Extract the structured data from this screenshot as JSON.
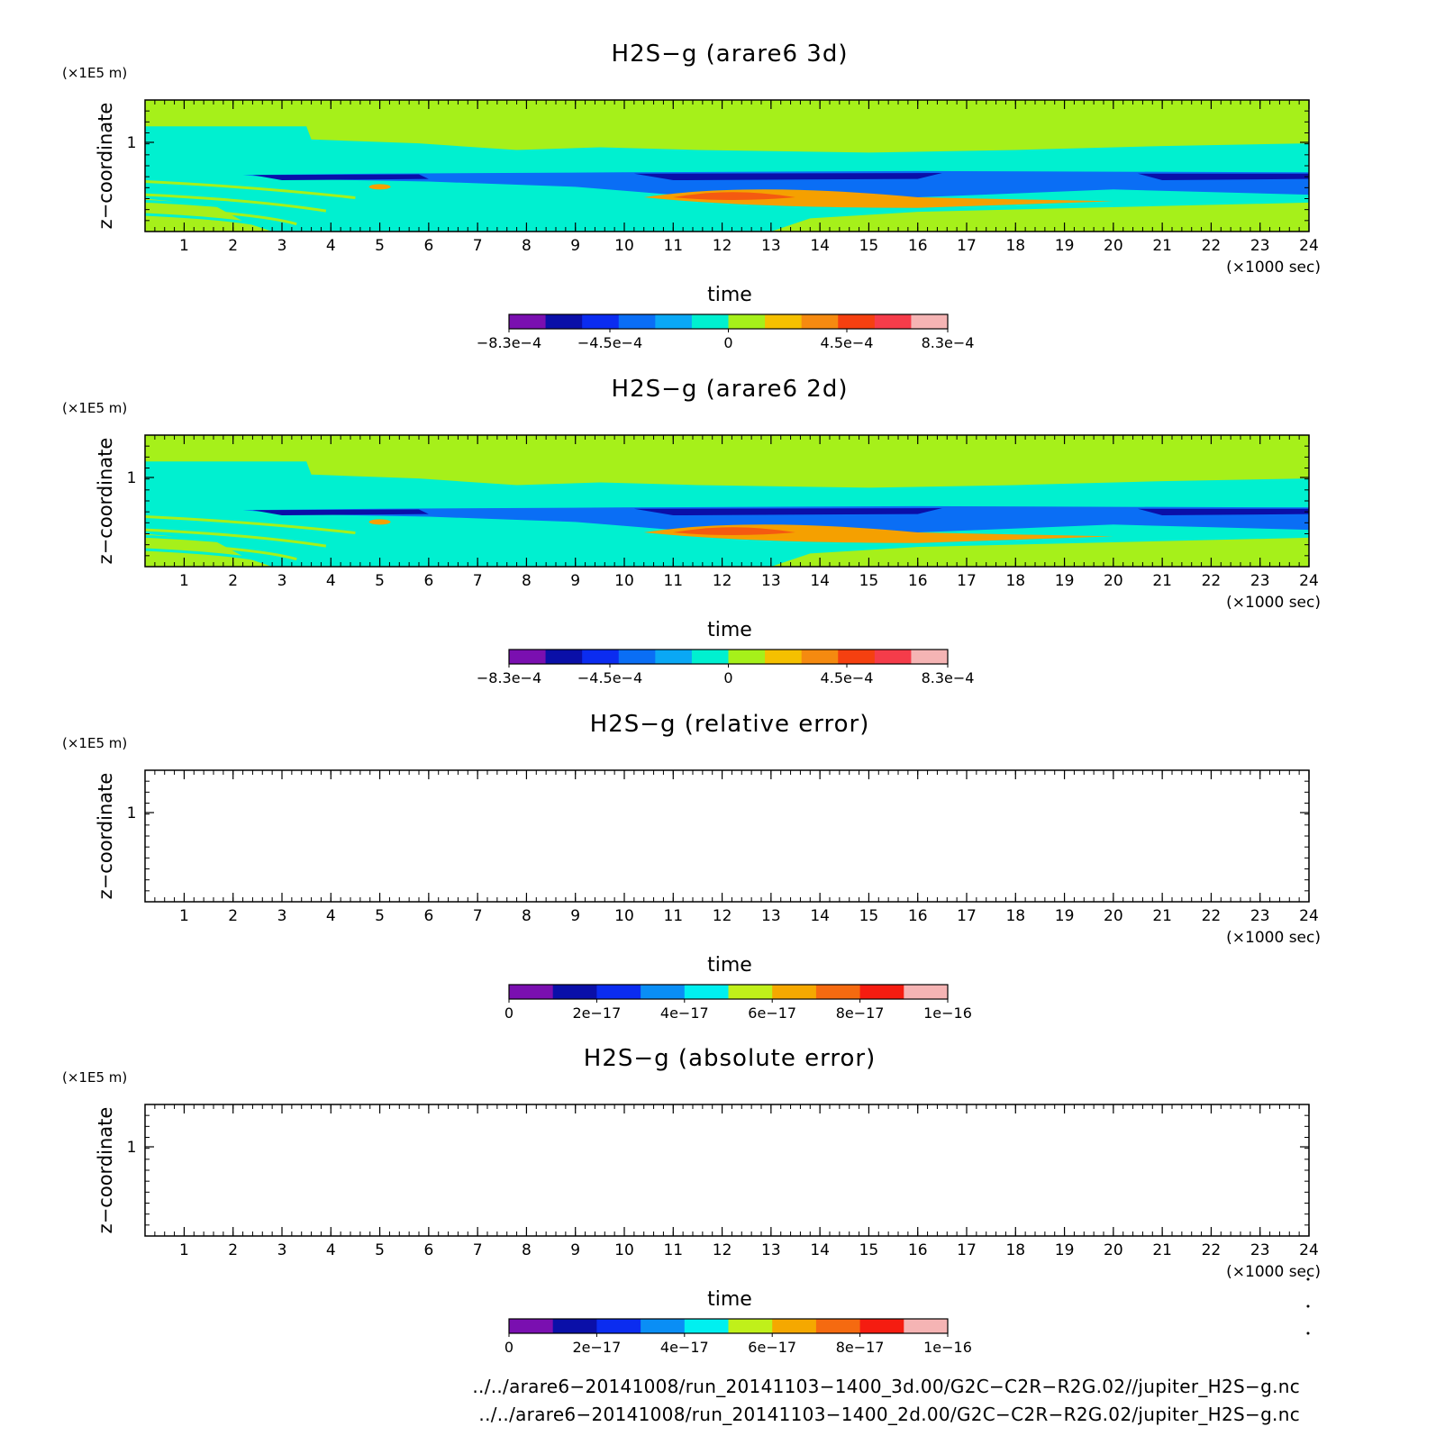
{
  "chart_data": [
    {
      "type": "heatmap",
      "title": "H2S−g (arare6 3d)",
      "xlabel": "time",
      "xunit": "(×1000 sec)",
      "ylabel": "z−coordinate",
      "yunit": "(×1E5 m)",
      "xlim": [
        0.2,
        24
      ],
      "xticks": [
        "1",
        "2",
        "3",
        "4",
        "5",
        "6",
        "7",
        "8",
        "9",
        "10",
        "11",
        "12",
        "13",
        "14",
        "15",
        "16",
        "17",
        "18",
        "19",
        "20",
        "21",
        "22",
        "23",
        "24"
      ],
      "yticks": [
        "1"
      ],
      "filled": true,
      "colorbar": {
        "colors": [
          "#7a0fb0",
          "#0a0fa8",
          "#0b2cf0",
          "#0a6ef5",
          "#0aa8f5",
          "#00f0d0",
          "#a6f01a",
          "#f5c000",
          "#f58a10",
          "#f54010",
          "#f53c4a",
          "#f5b4b4"
        ],
        "ticks": [
          "−8.3e−4",
          "−4.5e−4",
          "0",
          "4.5e−4",
          "8.3e−4"
        ]
      }
    },
    {
      "type": "heatmap",
      "title": "H2S−g (arare6 2d)",
      "xlabel": "time",
      "xunit": "(×1000 sec)",
      "ylabel": "z−coordinate",
      "yunit": "(×1E5 m)",
      "xlim": [
        0.2,
        24
      ],
      "xticks": [
        "1",
        "2",
        "3",
        "4",
        "5",
        "6",
        "7",
        "8",
        "9",
        "10",
        "11",
        "12",
        "13",
        "14",
        "15",
        "16",
        "17",
        "18",
        "19",
        "20",
        "21",
        "22",
        "23",
        "24"
      ],
      "yticks": [
        "1"
      ],
      "filled": true,
      "colorbar": {
        "colors": [
          "#7a0fb0",
          "#0a0fa8",
          "#0b2cf0",
          "#0a6ef5",
          "#0aa8f5",
          "#00f0d0",
          "#a6f01a",
          "#f5c000",
          "#f58a10",
          "#f54010",
          "#f53c4a",
          "#f5b4b4"
        ],
        "ticks": [
          "−8.3e−4",
          "−4.5e−4",
          "0",
          "4.5e−4",
          "8.3e−4"
        ]
      }
    },
    {
      "type": "heatmap",
      "title": "H2S−g (relative error)",
      "xlabel": "time",
      "xunit": "(×1000 sec)",
      "ylabel": "z−coordinate",
      "yunit": "(×1E5 m)",
      "xlim": [
        0.2,
        24
      ],
      "xticks": [
        "1",
        "2",
        "3",
        "4",
        "5",
        "6",
        "7",
        "8",
        "9",
        "10",
        "11",
        "12",
        "13",
        "14",
        "15",
        "16",
        "17",
        "18",
        "19",
        "20",
        "21",
        "22",
        "23",
        "24"
      ],
      "yticks": [
        "1"
      ],
      "filled": false,
      "colorbar": {
        "colors": [
          "#7a0fb0",
          "#0a0fa8",
          "#0b2cf0",
          "#0a8ef5",
          "#00f0f0",
          "#c0f01a",
          "#f5a800",
          "#f56a10",
          "#f51c10",
          "#f5b4b4"
        ],
        "ticks": [
          "0",
          "2e−17",
          "4e−17",
          "6e−17",
          "8e−17",
          "1e−16"
        ]
      }
    },
    {
      "type": "heatmap",
      "title": "H2S−g (absolute error)",
      "xlabel": "time",
      "xunit": "(×1000 sec)",
      "ylabel": "z−coordinate",
      "yunit": "(×1E5 m)",
      "xlim": [
        0.2,
        24
      ],
      "xticks": [
        "1",
        "2",
        "3",
        "4",
        "5",
        "6",
        "7",
        "8",
        "9",
        "10",
        "11",
        "12",
        "13",
        "14",
        "15",
        "16",
        "17",
        "18",
        "19",
        "20",
        "21",
        "22",
        "23",
        "24"
      ],
      "yticks": [
        "1"
      ],
      "filled": false,
      "colorbar": {
        "colors": [
          "#7a0fb0",
          "#0a0fa8",
          "#0b2cf0",
          "#0a8ef5",
          "#00f0f0",
          "#c0f01a",
          "#f5a800",
          "#f56a10",
          "#f51c10",
          "#f5b4b4"
        ],
        "ticks": [
          "0",
          "2e−17",
          "4e−17",
          "6e−17",
          "8e−17",
          "1e−16"
        ]
      }
    }
  ],
  "footer": {
    "line1": "../../arare6−20141008/run_20141103−1400_3d.00/G2C−C2R−R2G.02//jupiter_H2S−g.nc",
    "line2": "../../arare6−20141008/run_20141103−1400_2d.00/G2C−C2R−R2G.02/jupiter_H2S−g.nc"
  },
  "palette": {
    "background_green": "#a6f01a",
    "cyan": "#00f0d0",
    "blue": "#0a6ef5",
    "dark_blue": "#0a0fa8",
    "orange": "#f5a000",
    "red_orange": "#f55a10"
  }
}
